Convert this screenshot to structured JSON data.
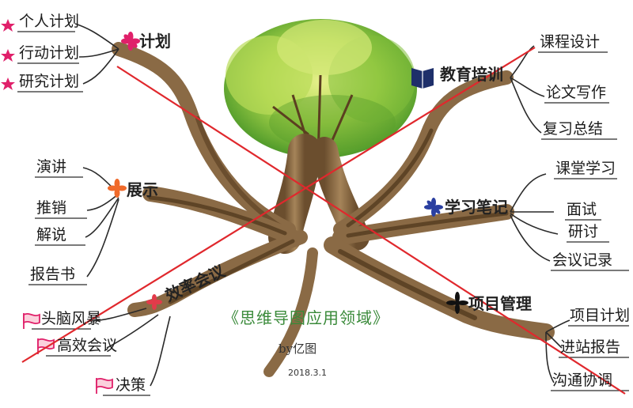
{
  "title": "《思维导图应用领域》",
  "byline": "by亿图",
  "date": "2018.3.1",
  "branches": {
    "plan": {
      "hub": "计划",
      "leaves": [
        "个人计划",
        "行动计划",
        "研究计划"
      ]
    },
    "education": {
      "hub": "教育培训",
      "leaves": [
        "课程设计",
        "论文写作",
        "复习总结"
      ]
    },
    "show": {
      "hub": "展示",
      "leaves": [
        "演讲",
        "推销",
        "解说",
        "报告书"
      ]
    },
    "study": {
      "hub": "学习笔记",
      "leaves": [
        "课堂学习",
        "面试",
        "研讨",
        "会议记录"
      ]
    },
    "meeting": {
      "hub": "效率会议",
      "leaves": [
        "头脑风暴",
        "高效会议",
        "决策"
      ]
    },
    "project": {
      "hub": "项目管理",
      "leaves": [
        "项目计划",
        "进站报告",
        "沟通协调"
      ]
    }
  },
  "colors": {
    "crossout": "#e0282d",
    "bark": "#8a6a45",
    "canopy_light": "#c9e36a",
    "canopy_dark": "#5aa02a",
    "star_pink": "#e0206a",
    "flower_red": "#e23b4a",
    "flower_orange": "#f06a2a",
    "book_navy": "#1e2f6a",
    "study_blue": "#2a3fa0",
    "title_green": "#3a8a3a"
  }
}
